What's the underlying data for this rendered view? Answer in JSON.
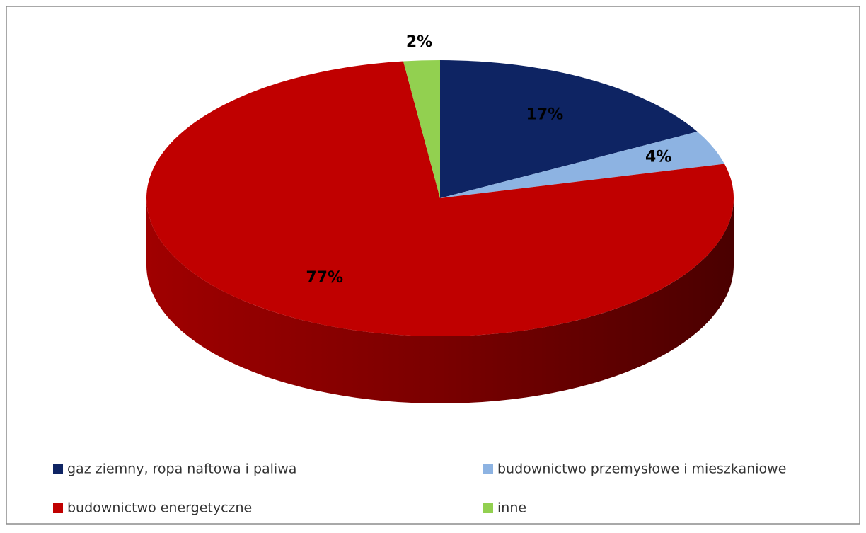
{
  "chart_data": {
    "type": "pie",
    "categories": [
      "gaz ziemny, ropa naftowa i paliwa",
      "budownictwo przemysłowe i mieszkaniowe",
      "budownictwo energetyczne",
      "inne"
    ],
    "values": [
      17,
      4,
      77,
      2
    ],
    "value_labels": [
      "17%",
      "4%",
      "77%",
      "2%"
    ],
    "colors": [
      "#0e2463",
      "#8db3e2",
      "#c00000",
      "#92d050"
    ],
    "legend": "bottom"
  }
}
